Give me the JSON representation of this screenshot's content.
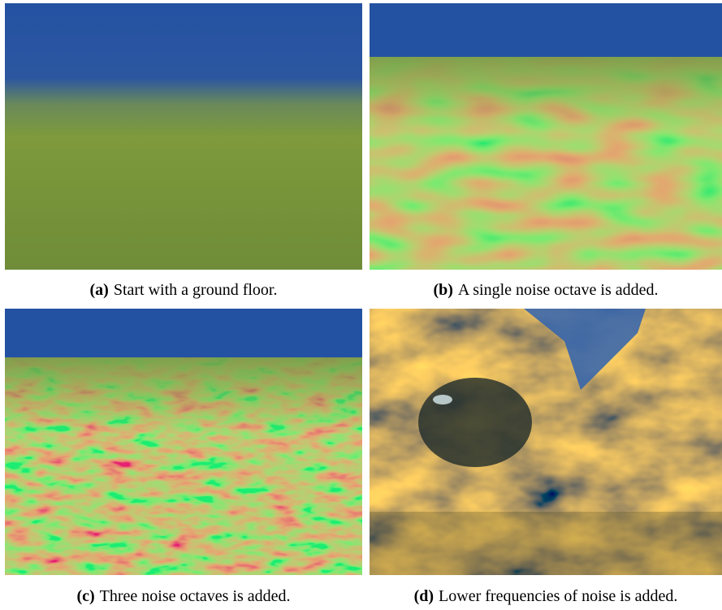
{
  "figures": [
    {
      "label": "(a)",
      "caption": "Start with a ground floor."
    },
    {
      "label": "(b)",
      "caption": "A single noise octave is added."
    },
    {
      "label": "(c)",
      "caption": "Three noise octaves is added."
    },
    {
      "label": "(d)",
      "caption": "Lower frequencies of noise is added."
    }
  ]
}
